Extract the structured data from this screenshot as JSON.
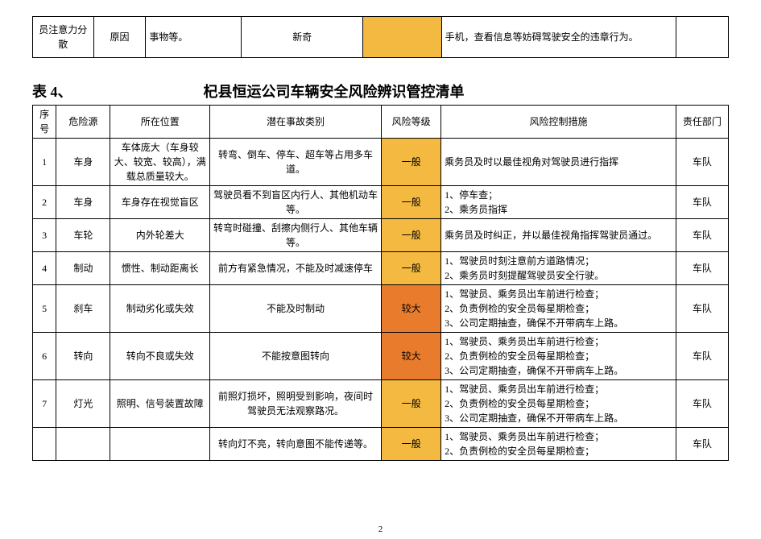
{
  "colors": {
    "risk_normal_bg": "#f4b940",
    "risk_high_bg": "#e97c2c",
    "border": "#000000",
    "background": "#ffffff"
  },
  "top_fragment": {
    "col1": "员注意力分散",
    "col2": "原因",
    "col3": "事物等。",
    "col4": "新奇",
    "col5": "",
    "col6": "手机，查看信息等妨碍驾驶安全的违章行为。",
    "col7": ""
  },
  "title_label": "表 4、",
  "title_main": "杞县恒运公司车辆安全风险辨识管控清单",
  "headers": {
    "seq": "序号",
    "source": "危险源",
    "location": "所在位置",
    "accident": "潜在事故类别",
    "risk": "风险等级",
    "control": "风险控制措施",
    "dept": "责任部门"
  },
  "risk_levels": {
    "normal": "一般",
    "high": "较大"
  },
  "rows": [
    {
      "seq": "1",
      "source": "车身",
      "location": "车体庞大（车身较大、较宽、较高），满载总质量较大。",
      "accident": "转弯、倒车、停车、超车等占用多车道。",
      "risk": "normal",
      "control": "乘务员及时以最佳视角对驾驶员进行指挥",
      "dept": "车队"
    },
    {
      "seq": "2",
      "source": "车身",
      "location": "车身存在视觉盲区",
      "accident": "驾驶员看不到盲区内行人、其他机动车等。",
      "risk": "normal",
      "control": "1、停车查；\n2、乘务员指挥",
      "dept": "车队"
    },
    {
      "seq": "3",
      "source": "车轮",
      "location": "内外轮差大",
      "accident": "转弯时碰撞、刮擦内侧行人、其他车辆等。",
      "risk": "normal",
      "control": "乘务员及时纠正，并以最佳视角指挥驾驶员通过。",
      "dept": "车队"
    },
    {
      "seq": "4",
      "source": "制动",
      "location": "惯性、制动距离长",
      "accident": "前方有紧急情况，不能及时减速停车",
      "risk": "normal",
      "control": "1、驾驶员时刻注意前方道路情况；\n2、乘务员时刻提醒驾驶员安全行驶。",
      "dept": "车队"
    },
    {
      "seq": "5",
      "source": "刹车",
      "location": "制动劣化或失效",
      "accident": "不能及时制动",
      "risk": "high",
      "control": "1、驾驶员、乘务员出车前进行检查；\n2、负责例检的安全员每星期检查；\n3、公司定期抽查，确保不开带病车上路。",
      "dept": "车队"
    },
    {
      "seq": "6",
      "source": "转向",
      "location": "转向不良或失效",
      "accident": "不能按意图转向",
      "risk": "high",
      "control": "1、驾驶员、乘务员出车前进行检查；\n2、负责例检的安全员每星期检查；\n3、公司定期抽查，确保不开带病车上路。",
      "dept": "车队"
    },
    {
      "seq": "7",
      "source": "灯光",
      "location": "照明、信号装置故障",
      "accident": "前照灯损坏，照明受到影响，夜间时\n驾驶员无法观察路况。",
      "risk": "normal",
      "control": "1、驾驶员、乘务员出车前进行检查；\n2、负责例检的安全员每星期检查；\n3、公司定期抽查，确保不开带病车上路。",
      "dept": "车队"
    },
    {
      "seq": "",
      "source": "",
      "location": "",
      "accident": "转向灯不亮，转向意图不能传递等。",
      "risk": "normal",
      "control": "1、驾驶员、乘务员出车前进行检查；\n2、负责例检的安全员每星期检查；",
      "dept": "车队"
    }
  ],
  "page_number": "2"
}
